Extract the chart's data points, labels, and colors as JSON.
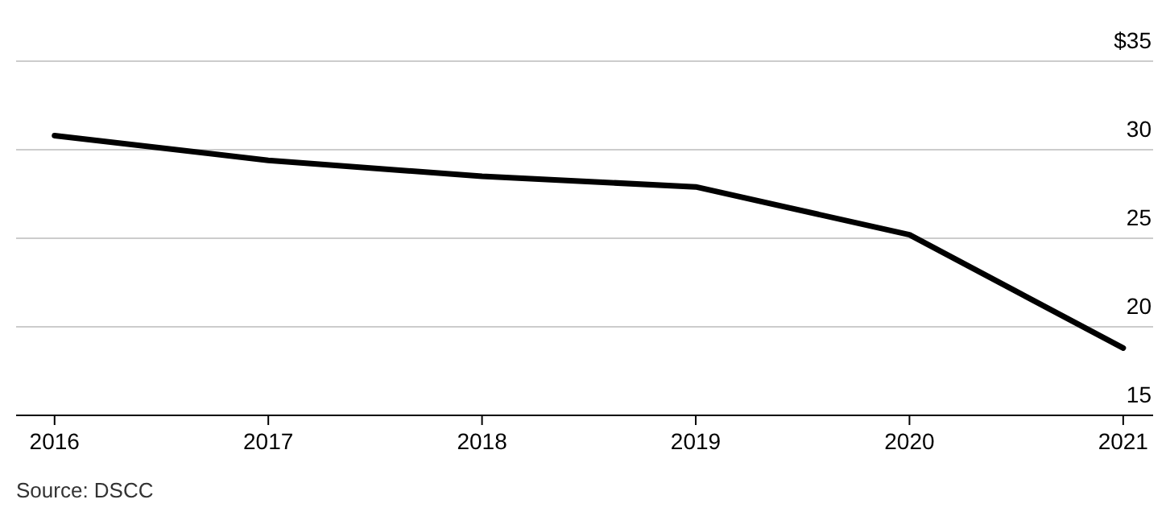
{
  "chart_data": {
    "type": "line",
    "x": [
      2016,
      2017,
      2018,
      2019,
      2020,
      2021
    ],
    "xticks": [
      2016,
      2017,
      2018,
      2019,
      2020,
      2021
    ],
    "xlim": [
      2015.82,
      2021.14
    ],
    "series": [
      {
        "color": "#000000",
        "values": [
          30.8,
          29.4,
          28.5,
          27.9,
          25.2,
          18.8
        ]
      }
    ],
    "ylim": [
      15,
      35
    ],
    "yticks": [
      15,
      20,
      25,
      30,
      {
        "value": 35,
        "label": "$35"
      }
    ],
    "grid": "y",
    "line_style": "solid",
    "marker": "none",
    "annotations": [
      "Source: DSCC"
    ]
  }
}
